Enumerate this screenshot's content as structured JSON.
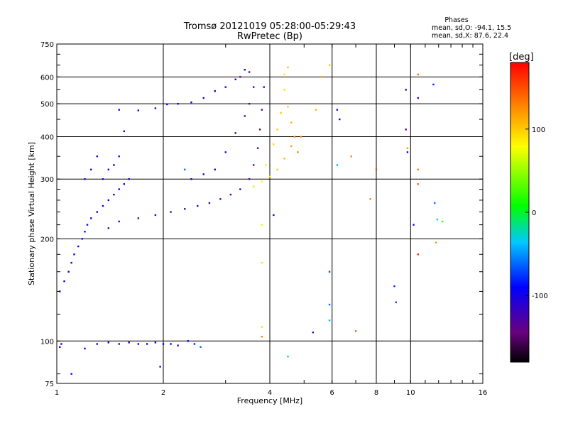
{
  "chart_data": {
    "type": "scatter",
    "title": "Tromsø 20121019 05:28:00-05:29:43",
    "subtitle": "RwPretec (Bp)",
    "xlabel": "Frequency [MHz]",
    "ylabel": "Stationary phase Virtual Height [km]",
    "x_scale": "log",
    "y_scale": "log",
    "xlim": [
      1,
      16
    ],
    "ylim": [
      75,
      750
    ],
    "x_ticks": [
      1,
      2,
      4,
      6,
      8,
      10,
      16
    ],
    "x_tick_labels": [
      "1",
      "2",
      "4",
      "6",
      "8",
      "10",
      "16"
    ],
    "y_ticks": [
      75,
      100,
      200,
      300,
      400,
      500,
      600,
      750
    ],
    "y_tick_labels": [
      "75",
      "100",
      "200",
      "300",
      "400",
      "500",
      "600",
      "750"
    ],
    "grid": true,
    "phases_box": {
      "title": "Phases",
      "line1": "mean, sd,O: -94.1, 15.5",
      "line2": "mean, sd,X:  87.6, 22.4"
    },
    "colorbar": {
      "label": "[deg]",
      "range": [
        -180,
        180
      ],
      "ticks": [
        100,
        0,
        -100
      ],
      "tick_labels": [
        "100",
        "0",
        "-100"
      ]
    },
    "series": [
      {
        "points": [
          [
            1.02,
            96,
            -100
          ],
          [
            1.03,
            98,
            -100
          ],
          [
            1.3,
            98,
            -100
          ],
          [
            1.4,
            99,
            -95
          ],
          [
            1.5,
            98,
            -100
          ],
          [
            1.6,
            99,
            -100
          ],
          [
            1.7,
            98,
            -95
          ],
          [
            1.8,
            98,
            -100
          ],
          [
            1.9,
            99,
            -100
          ],
          [
            2.0,
            98,
            -95
          ],
          [
            2.1,
            98,
            -100
          ],
          [
            2.2,
            97,
            -100
          ],
          [
            2.35,
            100,
            -90
          ],
          [
            2.45,
            98,
            -80
          ],
          [
            2.55,
            96,
            -60
          ],
          [
            1.96,
            84,
            -120
          ],
          [
            1.02,
            140,
            -100
          ],
          [
            1.05,
            150,
            -95
          ],
          [
            1.08,
            160,
            -90
          ],
          [
            1.1,
            170,
            -105
          ],
          [
            1.12,
            180,
            -90
          ],
          [
            1.15,
            190,
            -100
          ],
          [
            1.18,
            200,
            -85
          ],
          [
            1.2,
            210,
            -100
          ],
          [
            1.22,
            220,
            -95
          ],
          [
            1.25,
            230,
            -100
          ],
          [
            1.3,
            240,
            -95
          ],
          [
            1.35,
            250,
            -100
          ],
          [
            1.4,
            260,
            -105
          ],
          [
            1.45,
            270,
            -100
          ],
          [
            1.5,
            280,
            -110
          ],
          [
            1.55,
            290,
            -105
          ],
          [
            1.6,
            300,
            -100
          ],
          [
            1.35,
            300,
            -95
          ],
          [
            1.4,
            320,
            -100
          ],
          [
            1.45,
            330,
            -105
          ],
          [
            1.2,
            300,
            -100
          ],
          [
            1.25,
            320,
            -95
          ],
          [
            1.3,
            350,
            -100
          ],
          [
            1.4,
            215,
            -130
          ],
          [
            1.5,
            225,
            -125
          ],
          [
            1.7,
            230,
            -130
          ],
          [
            1.9,
            235,
            -120
          ],
          [
            2.1,
            240,
            -125
          ],
          [
            2.3,
            245,
            -120
          ],
          [
            2.5,
            250,
            -125
          ],
          [
            2.7,
            255,
            -120
          ],
          [
            2.9,
            262,
            -130
          ],
          [
            3.1,
            270,
            -125
          ],
          [
            3.3,
            280,
            -130
          ],
          [
            3.5,
            300,
            -135
          ],
          [
            3.6,
            330,
            -140
          ],
          [
            3.7,
            370,
            -145
          ],
          [
            3.75,
            420,
            -150
          ],
          [
            3.8,
            480,
            -140
          ],
          [
            3.85,
            560,
            -130
          ],
          [
            2.4,
            300,
            -100
          ],
          [
            2.6,
            310,
            -105
          ],
          [
            2.8,
            320,
            -100
          ],
          [
            3.0,
            360,
            -110
          ],
          [
            3.2,
            410,
            -120
          ],
          [
            3.4,
            460,
            -130
          ],
          [
            3.5,
            500,
            -135
          ],
          [
            3.6,
            560,
            -140
          ],
          [
            3.5,
            620,
            -150
          ],
          [
            3.3,
            600,
            -145
          ],
          [
            1.5,
            480,
            -100
          ],
          [
            1.7,
            478,
            -95
          ],
          [
            1.9,
            485,
            -100
          ],
          [
            2.05,
            498,
            -95
          ],
          [
            2.2,
            500,
            -100
          ],
          [
            2.4,
            505,
            -100
          ],
          [
            2.6,
            520,
            -95
          ],
          [
            2.8,
            545,
            -100
          ],
          [
            3.0,
            560,
            -105
          ],
          [
            3.2,
            590,
            -110
          ],
          [
            3.4,
            630,
            -115
          ],
          [
            1.1,
            80,
            -100
          ],
          [
            1.2,
            95,
            -90
          ],
          [
            1.5,
            350,
            -120
          ],
          [
            1.55,
            415,
            -110
          ],
          [
            2.3,
            320,
            -60
          ]
        ]
      },
      {
        "points": [
          [
            3.6,
            285,
            60
          ],
          [
            3.8,
            295,
            80
          ],
          [
            4.0,
            305,
            90
          ],
          [
            4.2,
            320,
            100
          ],
          [
            4.4,
            345,
            110
          ],
          [
            4.6,
            375,
            120
          ],
          [
            4.7,
            400,
            130
          ],
          [
            4.6,
            440,
            110
          ],
          [
            4.5,
            490,
            100
          ],
          [
            4.4,
            550,
            95
          ],
          [
            4.4,
            610,
            90
          ],
          [
            4.5,
            640,
            105
          ],
          [
            4.2,
            420,
            100
          ],
          [
            4.1,
            380,
            95
          ],
          [
            3.9,
            330,
            85
          ],
          [
            4.3,
            470,
            100
          ],
          [
            4.8,
            360,
            130
          ],
          [
            4.9,
            400,
            125
          ],
          [
            5.4,
            480,
            110
          ],
          [
            5.6,
            600,
            120
          ],
          [
            5.9,
            650,
            100
          ],
          [
            6.8,
            350,
            130
          ],
          [
            7.0,
            107,
            140
          ],
          [
            7.7,
            262,
            130
          ],
          [
            8.0,
            320,
            150
          ],
          [
            9.8,
            370,
            120
          ],
          [
            10.5,
            610,
            140
          ],
          [
            10.5,
            320,
            130
          ],
          [
            10.5,
            290,
            140
          ],
          [
            3.8,
            220,
            70
          ],
          [
            3.8,
            170,
            90
          ],
          [
            3.8,
            110,
            60
          ],
          [
            3.8,
            103,
            130
          ]
        ]
      },
      {
        "points": [
          [
            4.1,
            235,
            -110
          ],
          [
            5.3,
            106,
            -110
          ],
          [
            5.9,
            160,
            -70
          ],
          [
            5.9,
            128,
            -60
          ],
          [
            5.9,
            115,
            -40
          ],
          [
            6.2,
            480,
            -110
          ],
          [
            6.3,
            450,
            -100
          ],
          [
            9.0,
            145,
            -80
          ],
          [
            9.1,
            130,
            -70
          ],
          [
            9.7,
            550,
            -120
          ],
          [
            9.7,
            420,
            -130
          ],
          [
            9.8,
            360,
            -100
          ],
          [
            10.5,
            520,
            -120
          ],
          [
            11.6,
            570,
            -80
          ],
          [
            11.7,
            255,
            -60
          ],
          [
            11.9,
            228,
            -30
          ],
          [
            12.3,
            225,
            20
          ],
          [
            11.8,
            195,
            120
          ],
          [
            10.5,
            180,
            170
          ],
          [
            10.2,
            220,
            -110
          ],
          [
            4.5,
            90,
            -20
          ],
          [
            6.2,
            330,
            -40
          ]
        ]
      }
    ]
  }
}
